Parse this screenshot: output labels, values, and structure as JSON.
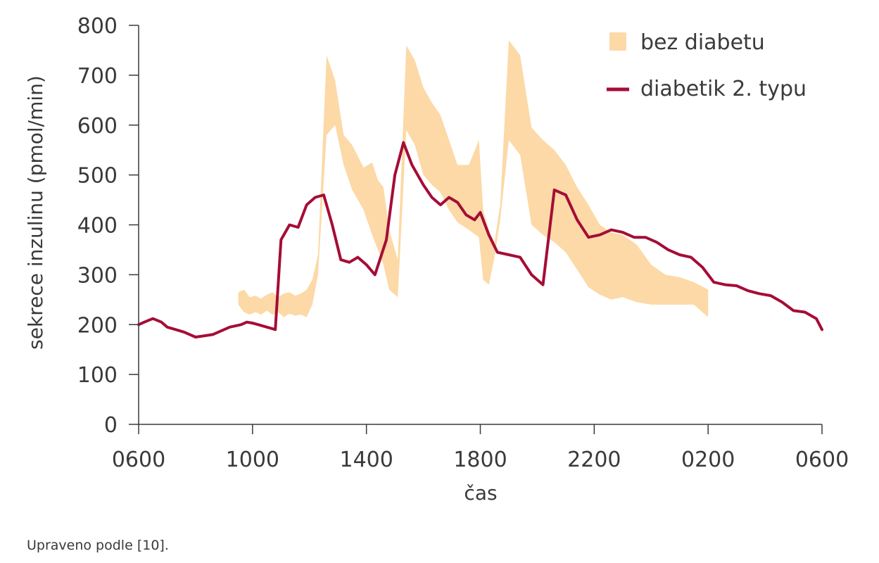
{
  "chart_data": {
    "type": "line",
    "title": "",
    "xlabel": "čas",
    "ylabel": "sekrece inzulinu (pmol/min)",
    "ylim": [
      0,
      800
    ],
    "xlim": [
      6,
      30
    ],
    "y_ticks": [
      0,
      100,
      200,
      300,
      400,
      500,
      600,
      700,
      800
    ],
    "x_ticks": [
      {
        "value": 6,
        "label": "0600"
      },
      {
        "value": 10,
        "label": "1000"
      },
      {
        "value": 14,
        "label": "1400"
      },
      {
        "value": 18,
        "label": "1800"
      },
      {
        "value": 22,
        "label": "2200"
      },
      {
        "value": 26,
        "label": "0200"
      },
      {
        "value": 30,
        "label": "0600"
      }
    ],
    "grid": false,
    "legend_position": "top-right",
    "series": [
      {
        "name": "bez diabetu",
        "kind": "band",
        "color": "#fcd9a6",
        "x": [
          9.5,
          9.7,
          9.9,
          10.1,
          10.3,
          10.5,
          10.7,
          10.9,
          11.1,
          11.3,
          11.5,
          11.7,
          11.9,
          12.1,
          12.3,
          12.6,
          12.9,
          13.2,
          13.5,
          13.9,
          14.2,
          14.4,
          14.6,
          14.8,
          15.1,
          15.4,
          15.7,
          16.0,
          16.3,
          16.6,
          16.9,
          17.2,
          17.6,
          17.95,
          18.1,
          18.3,
          18.5,
          18.7,
          19.0,
          19.4,
          19.8,
          20.2,
          20.6,
          21.0,
          21.4,
          21.8,
          22.2,
          22.6,
          23.0,
          23.5,
          24.0,
          24.5,
          25.0,
          25.5,
          26.0
        ],
        "upper": [
          265,
          270,
          255,
          258,
          252,
          260,
          265,
          255,
          262,
          265,
          258,
          262,
          270,
          290,
          340,
          740,
          690,
          580,
          560,
          515,
          525,
          490,
          475,
          390,
          330,
          760,
          730,
          675,
          645,
          620,
          570,
          520,
          520,
          570,
          430,
          390,
          365,
          440,
          770,
          740,
          595,
          570,
          550,
          520,
          475,
          440,
          400,
          385,
          380,
          360,
          320,
          300,
          295,
          285,
          270
        ],
        "lower": [
          240,
          225,
          220,
          225,
          220,
          228,
          220,
          225,
          215,
          222,
          218,
          220,
          215,
          240,
          300,
          580,
          600,
          520,
          470,
          430,
          380,
          350,
          320,
          270,
          255,
          590,
          560,
          500,
          480,
          465,
          430,
          405,
          390,
          375,
          290,
          280,
          335,
          410,
          570,
          540,
          400,
          380,
          365,
          345,
          310,
          275,
          260,
          250,
          255,
          245,
          240,
          240,
          240,
          240,
          215
        ]
      },
      {
        "name": "diabetik 2. typu",
        "kind": "line",
        "color": "#a50d36",
        "x": [
          6.0,
          6.2,
          6.5,
          6.8,
          7.0,
          7.3,
          7.6,
          8.0,
          8.6,
          9.2,
          9.6,
          9.8,
          10.0,
          10.2,
          10.5,
          10.8,
          11.0,
          11.3,
          11.6,
          11.9,
          12.2,
          12.5,
          12.8,
          13.1,
          13.4,
          13.7,
          14.0,
          14.3,
          14.7,
          15.0,
          15.3,
          15.6,
          16.0,
          16.3,
          16.6,
          16.9,
          17.2,
          17.5,
          17.8,
          18.0,
          18.3,
          18.6,
          19.0,
          19.4,
          19.8,
          20.2,
          20.6,
          21.0,
          21.4,
          21.8,
          22.2,
          22.6,
          23.0,
          23.4,
          23.8,
          24.2,
          24.6,
          25.0,
          25.4,
          25.8,
          26.2,
          26.6,
          27.0,
          27.4,
          27.8,
          28.2,
          28.6,
          29.0,
          29.4,
          29.8,
          30.0
        ],
        "y": [
          200,
          205,
          212,
          205,
          195,
          190,
          185,
          175,
          180,
          195,
          200,
          205,
          203,
          200,
          195,
          190,
          370,
          400,
          395,
          440,
          455,
          460,
          400,
          330,
          325,
          335,
          320,
          300,
          370,
          500,
          565,
          520,
          480,
          455,
          440,
          455,
          445,
          420,
          410,
          425,
          380,
          345,
          340,
          335,
          300,
          280,
          470,
          460,
          410,
          375,
          380,
          390,
          385,
          375,
          375,
          365,
          350,
          340,
          335,
          315,
          285,
          280,
          278,
          268,
          262,
          258,
          245,
          228,
          225,
          212,
          190
        ]
      }
    ]
  },
  "caption": "Upraveno podle [10]."
}
